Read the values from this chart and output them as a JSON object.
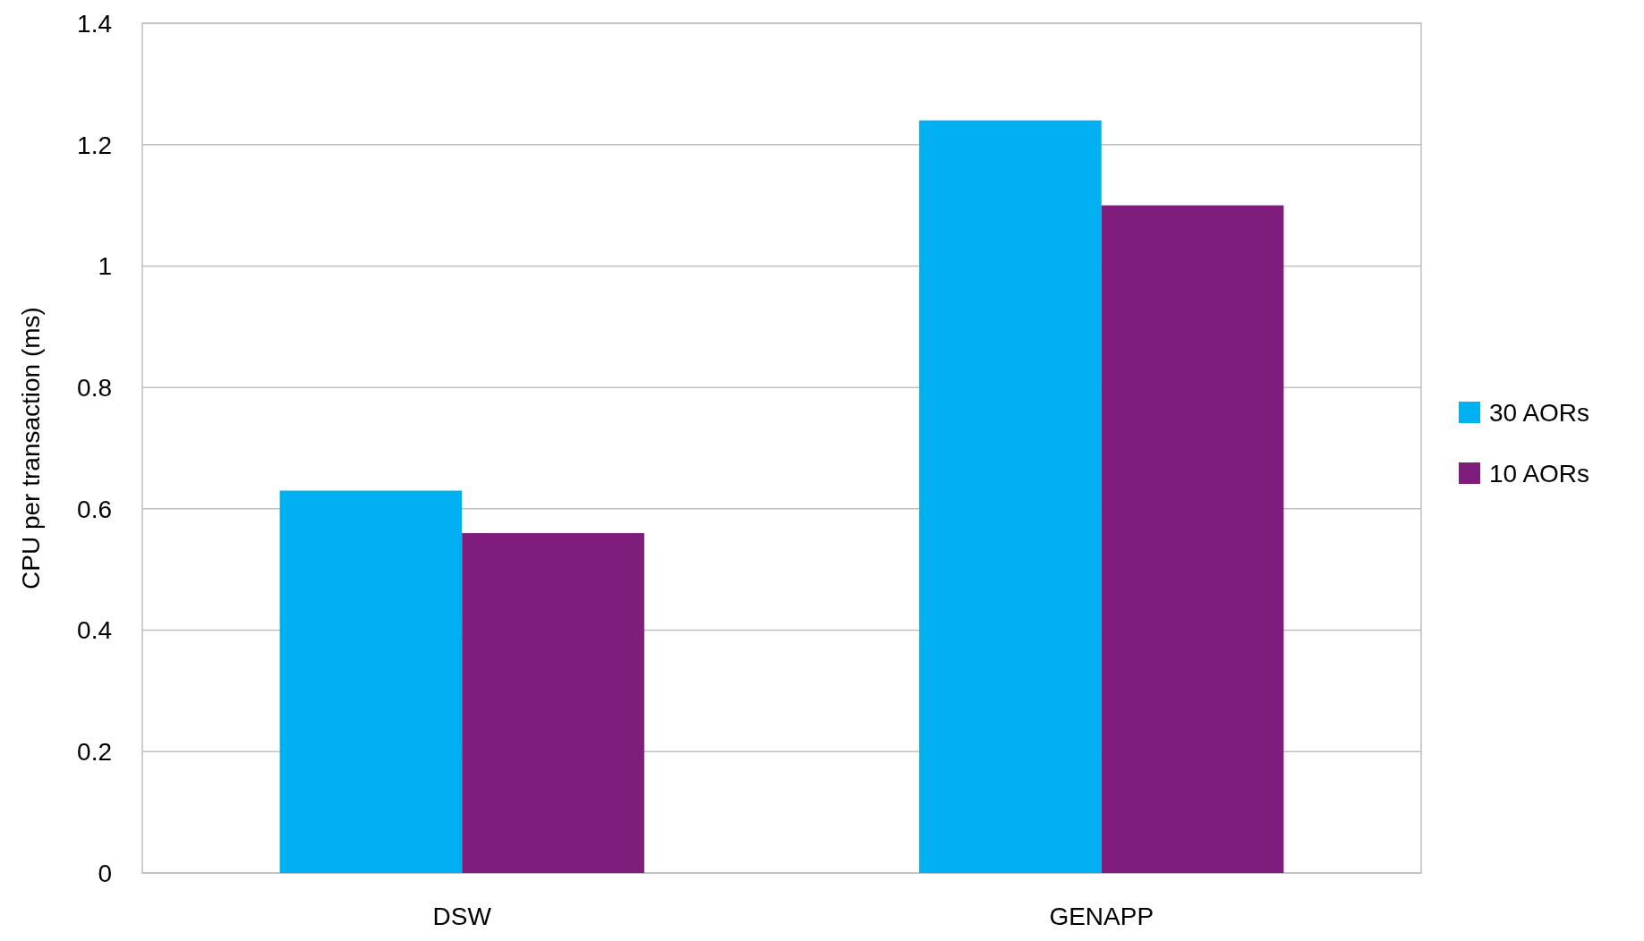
{
  "chart_data": {
    "type": "bar",
    "ylabel": "CPU per transaction (ms)",
    "categories": [
      "DSW",
      "GENAPP"
    ],
    "series": [
      {
        "name": "30 AORs",
        "color": "#00b0f0",
        "values": [
          0.63,
          1.24
        ]
      },
      {
        "name": "10 AORs",
        "color": "#7f1d7c",
        "values": [
          0.56,
          1.1
        ]
      }
    ],
    "ylim": [
      0,
      1.4
    ],
    "yticks": [
      0,
      0.2,
      0.4,
      0.6,
      0.8,
      1,
      1.2,
      1.4
    ],
    "grid": "y",
    "legend": "right"
  }
}
